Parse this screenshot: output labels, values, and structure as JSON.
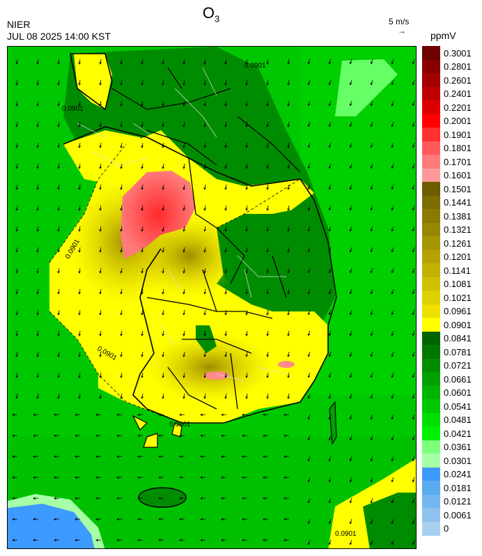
{
  "header": {
    "title_main": "O",
    "title_sub": "3",
    "organization": "NIER",
    "datetime": "JUL 08 2025 14:00 KST",
    "wind_reference": "5 m/s",
    "wind_arrow_glyph": "→",
    "unit": "ppmV"
  },
  "legend": {
    "labels": [
      "0.3001",
      "0.2801",
      "0.2601",
      "0.2401",
      "0.2201",
      "0.2001",
      "0.1901",
      "0.1801",
      "0.1701",
      "0.1601",
      "0.1501",
      "0.1441",
      "0.1381",
      "0.1321",
      "0.1261",
      "0.1201",
      "0.1141",
      "0.1081",
      "0.1021",
      "0.0961",
      "0.0901",
      "0.0841",
      "0.0781",
      "0.0721",
      "0.0661",
      "0.0601",
      "0.0541",
      "0.0481",
      "0.0421",
      "0.0361",
      "0.0301",
      "0.0241",
      "0.0181",
      "0.0121",
      "0.0061",
      "0"
    ],
    "colors": [
      "#6e0000",
      "#8a0000",
      "#a50000",
      "#c00000",
      "#dc0000",
      "#ff0000",
      "#ff3030",
      "#ff5a5a",
      "#ff7a7a",
      "#ff9a9a",
      "#6e5c00",
      "#7d6c00",
      "#8a7a00",
      "#988700",
      "#a69600",
      "#b4a300",
      "#c2b200",
      "#d0c000",
      "#dfd000",
      "#efe000",
      "#ffff00",
      "#006400",
      "#007800",
      "#008c00",
      "#00a000",
      "#00b400",
      "#00c800",
      "#00de00",
      "#00f000",
      "#7dff7d",
      "#a6ffa6",
      "#3d9bff",
      "#5aaaf0",
      "#74b6f0",
      "#8ec2f0",
      "#a8d0ee"
    ]
  },
  "map": {
    "contour_labels": [
      "0.0901",
      "0.0901",
      "0.0901",
      "0.0901",
      "0.0901",
      "0.0901"
    ],
    "colors": {
      "sea_green": "#00c000",
      "land_green": "#008c00",
      "yellow": "#ffff00",
      "olive": "#c8b400",
      "red": "#ff3030",
      "pink": "#ff8a8a",
      "blue": "#3d9bff",
      "light_green": "#6cff6c"
    }
  }
}
